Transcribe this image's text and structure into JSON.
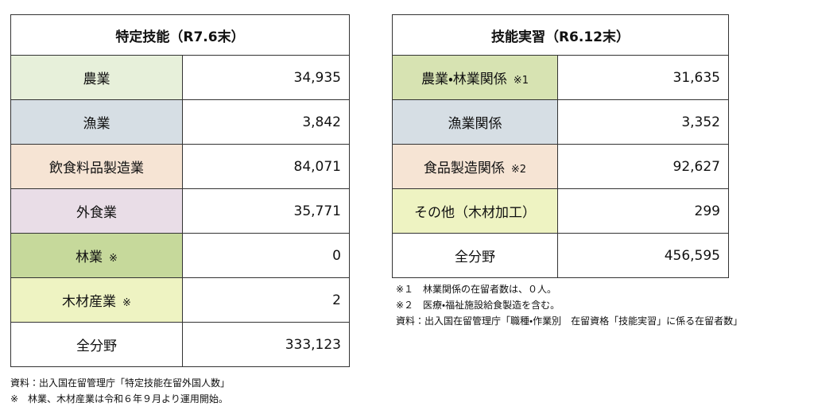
{
  "tables": [
    {
      "title": "特定技能（R7.6末）",
      "rows": [
        {
          "label": "農業",
          "value": "34,935",
          "color": "#e7f0da"
        },
        {
          "label": "漁業",
          "value": "3,842",
          "color": "#d6dee4"
        },
        {
          "label": "飲食料品製造業",
          "value": "84,071",
          "color": "#f6e4d4"
        },
        {
          "label": "外食業",
          "value": "35,771",
          "color": "#e9dde7"
        },
        {
          "label": "林業",
          "mark": "※",
          "value": "0",
          "color": "#c6d99b"
        },
        {
          "label": "木材産業",
          "mark": "※",
          "value": "2",
          "color": "#eef3c2"
        },
        {
          "label": "全分野",
          "value": "333,123",
          "color": "#ffffff"
        }
      ],
      "notes": [
        "資料：出入国在留管理庁「特定技能在留外国人数」",
        "※　林業、木材産業は令和６年９月より運用開始。"
      ]
    },
    {
      "title": "技能実習（R6.12末）",
      "rows": [
        {
          "label": "農業・林業関係",
          "mark": "※1",
          "value": "31,635",
          "color": "#d7e3b2"
        },
        {
          "label": "漁業関係",
          "value": "3,352",
          "color": "#d6dee4"
        },
        {
          "label": "食品製造関係",
          "mark": "※2",
          "value": "92,627",
          "color": "#f6e4d4"
        },
        {
          "label": "その他（木材加工）",
          "value": "299",
          "color": "#eef3c2"
        },
        {
          "label": "全分野",
          "value": "456,595",
          "color": "#ffffff"
        }
      ],
      "notes": [
        "※１　林業関係の在留者数は、０人。",
        "※２　医療・福祉施設給食製造を含む。",
        "資料：出入国在留管理庁「職種・作業別　在留資格「技能実習」に係る在留者数」"
      ]
    }
  ]
}
